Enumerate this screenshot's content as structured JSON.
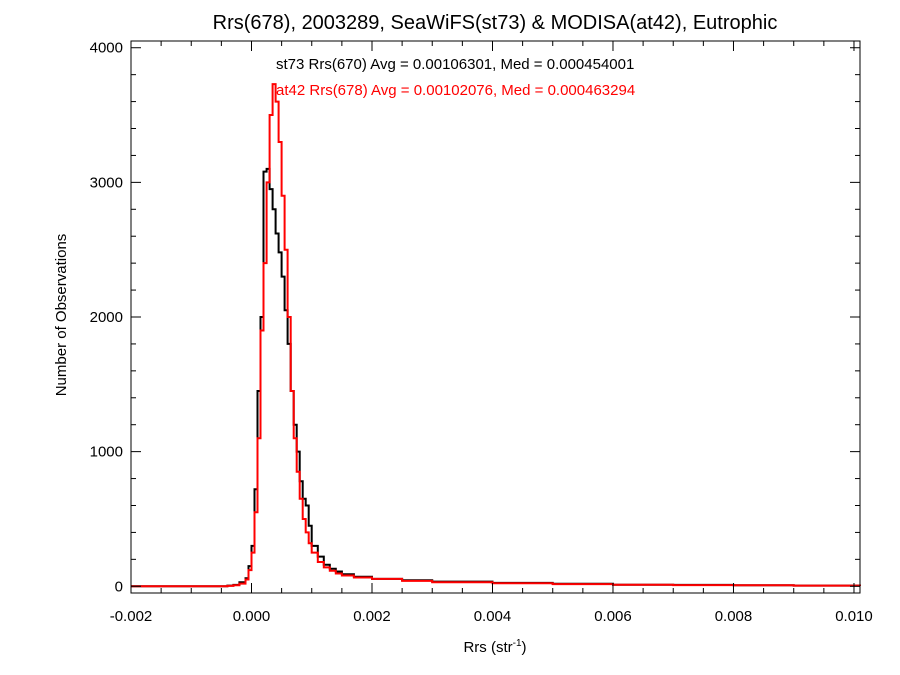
{
  "chart_data": {
    "type": "line",
    "title": "Rrs(678), 2003289, SeaWiFS(st73) & MODISA(at42), Eutrophic",
    "xlabel": "Rrs (str",
    "xlabel_sup": "-1",
    "xlabel_close": ")",
    "ylabel": "Number of Observations",
    "xlim": [
      -0.002,
      0.0101
    ],
    "ylim": [
      -50,
      4050
    ],
    "x_ticks": [
      -0.002,
      0.0,
      0.002,
      0.004,
      0.006,
      0.008,
      0.01
    ],
    "x_tick_labels": [
      "-0.002",
      "0.000",
      "0.002",
      "0.004",
      "0.006",
      "0.008",
      "0.010"
    ],
    "y_ticks": [
      0,
      1000,
      2000,
      3000,
      4000
    ],
    "y_tick_labels": [
      "0",
      "1000",
      "2000",
      "3000",
      "4000"
    ],
    "grid": false,
    "annotations": [
      {
        "text": "st73 Rrs(670) Avg = 0.00106301, Med = 0.000454001",
        "color": "#000000"
      },
      {
        "text": "at42 Rrs(678) Avg = 0.00102076, Med = 0.000463294",
        "color": "#ff0000"
      }
    ],
    "series": [
      {
        "color": "#000000",
        "step": "histogram",
        "x": [
          -0.002,
          -0.0004,
          -0.0003,
          -0.0002,
          -0.0001,
          -5e-05,
          0.0,
          5e-05,
          0.0001,
          0.00015,
          0.0002,
          0.00025,
          0.0003,
          0.00035,
          0.0004,
          0.00045,
          0.0005,
          0.00055,
          0.0006,
          0.00065,
          0.0007,
          0.00075,
          0.0008,
          0.00085,
          0.0009,
          0.00095,
          0.001,
          0.0011,
          0.0012,
          0.0013,
          0.0014,
          0.0015,
          0.0017,
          0.002,
          0.0025,
          0.003,
          0.004,
          0.005,
          0.006,
          0.007,
          0.008,
          0.009,
          0.0101
        ],
        "y": [
          0,
          5,
          10,
          30,
          60,
          150,
          300,
          720,
          1450,
          2000,
          3080,
          3100,
          2950,
          2800,
          2620,
          2480,
          2300,
          2050,
          1800,
          1450,
          1200,
          1000,
          780,
          650,
          600,
          450,
          300,
          220,
          160,
          130,
          110,
          90,
          70,
          55,
          45,
          35,
          25,
          18,
          12,
          10,
          8,
          5,
          3
        ]
      },
      {
        "color": "#ff0000",
        "step": "histogram",
        "x": [
          -0.002,
          -0.0004,
          -0.0003,
          -0.0002,
          -0.0001,
          -5e-05,
          0.0,
          5e-05,
          0.0001,
          0.00015,
          0.0002,
          0.00025,
          0.0003,
          0.00035,
          0.0004,
          0.00045,
          0.0005,
          0.00055,
          0.0006,
          0.00065,
          0.0007,
          0.00075,
          0.0008,
          0.00085,
          0.0009,
          0.00095,
          0.001,
          0.0011,
          0.0012,
          0.0013,
          0.0014,
          0.0015,
          0.0017,
          0.002,
          0.0025,
          0.003,
          0.004,
          0.005,
          0.006,
          0.007,
          0.008,
          0.009,
          0.0101
        ],
        "y": [
          0,
          3,
          8,
          20,
          50,
          120,
          250,
          550,
          1100,
          1900,
          2400,
          3000,
          3500,
          3730,
          3600,
          3300,
          2900,
          2500,
          2000,
          1450,
          1100,
          850,
          650,
          500,
          400,
          320,
          250,
          180,
          140,
          115,
          95,
          80,
          65,
          55,
          40,
          30,
          22,
          16,
          12,
          9,
          7,
          5,
          3
        ]
      }
    ]
  }
}
